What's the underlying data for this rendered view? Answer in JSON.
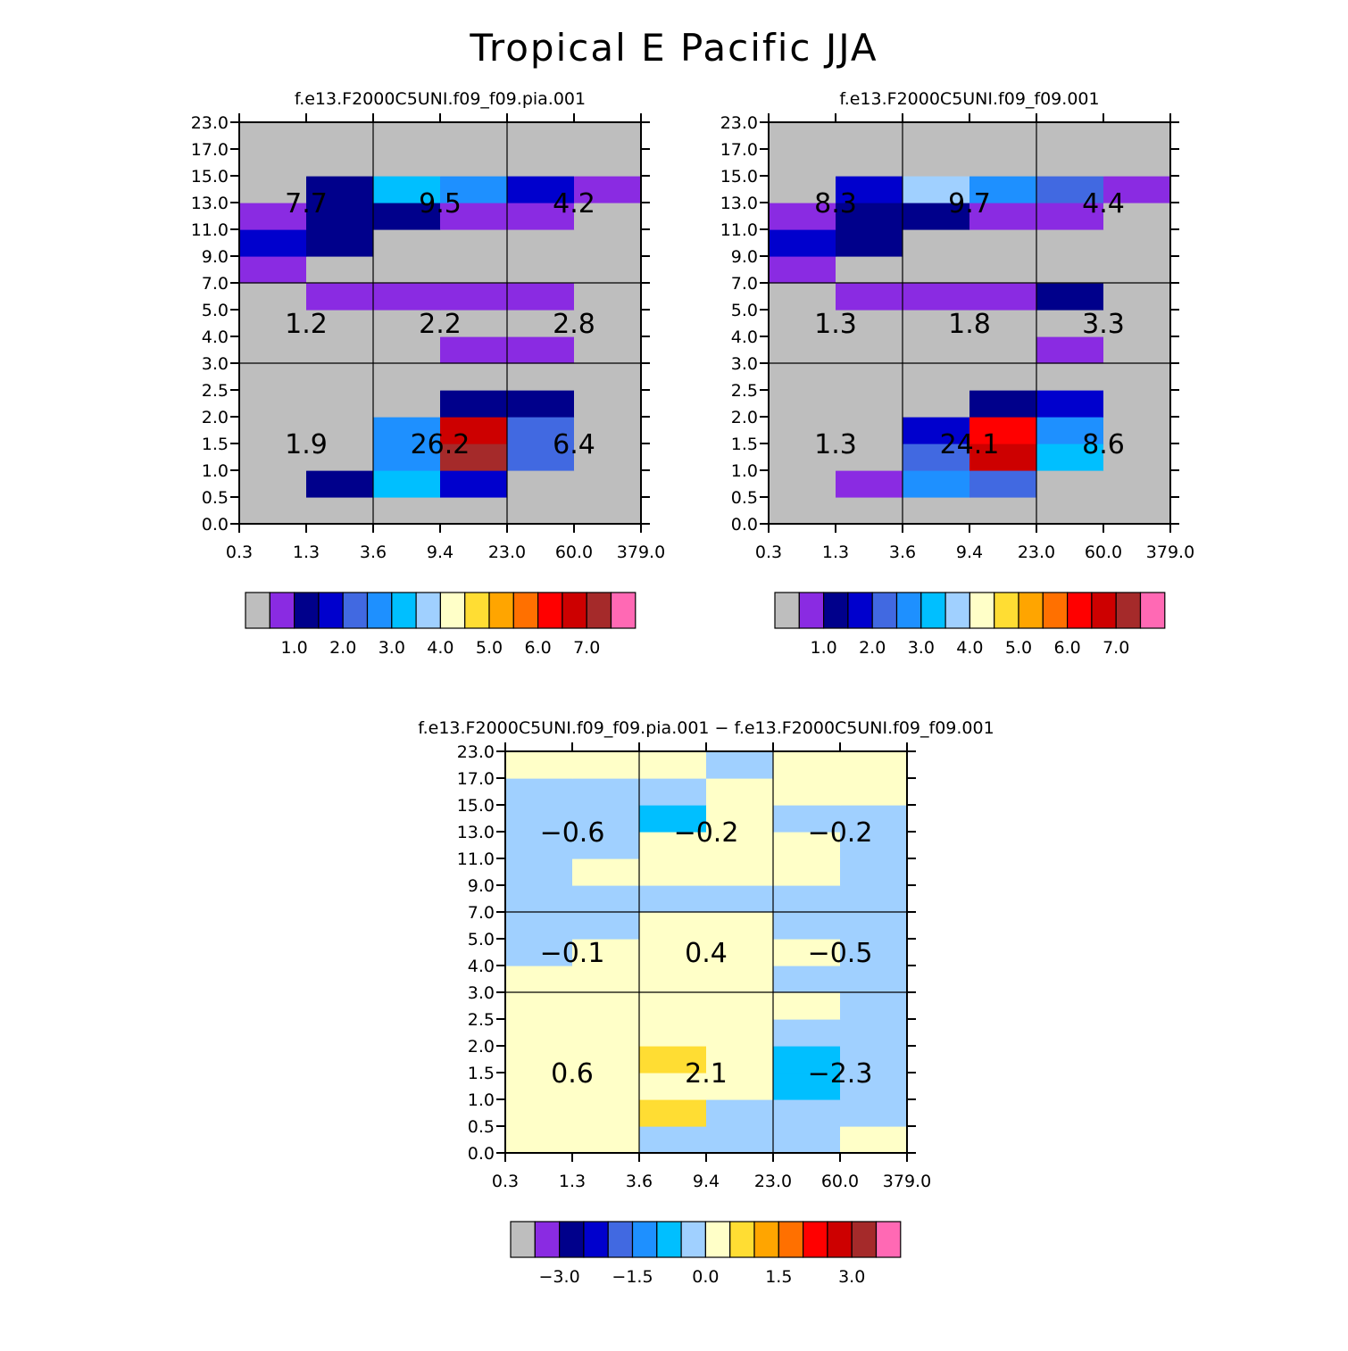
{
  "title": "Tropical E Pacific JJA",
  "x_tick_labels": [
    "0.3",
    "1.3",
    "3.6",
    "9.4",
    "23.0",
    "60.0",
    "379.0"
  ],
  "y_tick_labels": [
    "0.0",
    "0.5",
    "1.0",
    "1.5",
    "2.0",
    "2.5",
    "3.0",
    "4.0",
    "5.0",
    "7.0",
    "9.0",
    "11.0",
    "13.0",
    "15.0",
    "17.0",
    "23.0"
  ],
  "colors": {
    "c0": "#bebebe",
    "c1": "#8a2be2",
    "c2": "#00008b",
    "c3": "#0000cd",
    "c4": "#4169e1",
    "c5": "#1e90ff",
    "c6": "#00bfff",
    "c7": "#a0d0ff",
    "c8": "#ffffc8",
    "c9": "#ffdd33",
    "c10": "#ffa500",
    "c11": "#ff7000",
    "c12": "#ff0000",
    "c13": "#cd0000",
    "c14": "#a52a2a",
    "c15": "#ff69b4"
  },
  "colorbar_abs": {
    "colors": [
      "c0",
      "c1",
      "c2",
      "c3",
      "c4",
      "c5",
      "c6",
      "c7",
      "c8",
      "c9",
      "c10",
      "c11",
      "c12",
      "c13",
      "c14",
      "c15"
    ],
    "labels": [
      {
        "after_box": 2,
        "text": "1.0"
      },
      {
        "after_box": 4,
        "text": "2.0"
      },
      {
        "after_box": 6,
        "text": "3.0"
      },
      {
        "after_box": 8,
        "text": "4.0"
      },
      {
        "after_box": 10,
        "text": "5.0"
      },
      {
        "after_box": 12,
        "text": "6.0"
      },
      {
        "after_box": 14,
        "text": "7.0"
      }
    ]
  },
  "colorbar_diff": {
    "colors": [
      "c0",
      "c1",
      "c2",
      "c3",
      "c4",
      "c5",
      "c6",
      "c7",
      "c8",
      "c9",
      "c10",
      "c11",
      "c12",
      "c13",
      "c14",
      "c15"
    ],
    "labels": [
      {
        "after_box": 2,
        "text": "−3.0"
      },
      {
        "after_box": 5,
        "text": "−1.5"
      },
      {
        "after_box": 8,
        "text": "0.0"
      },
      {
        "after_box": 11,
        "text": "1.5"
      },
      {
        "after_box": 14,
        "text": "3.0"
      }
    ]
  },
  "chart_data": [
    {
      "type": "heatmap",
      "title": "f.e13.F2000C5UNI.f09_f09.pia.001",
      "x_bins": [
        "0.3",
        "1.3",
        "3.6",
        "9.4",
        "23.0",
        "60.0",
        "379.0"
      ],
      "y_bins": [
        "0.0",
        "0.5",
        "1.0",
        "1.5",
        "2.0",
        "2.5",
        "3.0",
        "4.0",
        "5.0",
        "7.0",
        "9.0",
        "11.0",
        "13.0",
        "15.0",
        "17.0",
        "23.0"
      ],
      "cells": [
        [
          "c0",
          "c0",
          "c0",
          "c0",
          "c0",
          "c0"
        ],
        [
          "c0",
          "c2",
          "c6",
          "c3",
          "c0",
          "c0"
        ],
        [
          "c0",
          "c0",
          "c5",
          "c14",
          "c4",
          "c0"
        ],
        [
          "c0",
          "c0",
          "c5",
          "c13",
          "c4",
          "c0"
        ],
        [
          "c0",
          "c0",
          "c0",
          "c2",
          "c2",
          "c0"
        ],
        [
          "c0",
          "c0",
          "c0",
          "c0",
          "c0",
          "c0"
        ],
        [
          "c0",
          "c0",
          "c0",
          "c1",
          "c1",
          "c0"
        ],
        [
          "c0",
          "c0",
          "c0",
          "c0",
          "c0",
          "c0"
        ],
        [
          "c0",
          "c1",
          "c1",
          "c1",
          "c1",
          "c0"
        ],
        [
          "c1",
          "c0",
          "c0",
          "c0",
          "c0",
          "c0"
        ],
        [
          "c3",
          "c2",
          "c0",
          "c0",
          "c0",
          "c0"
        ],
        [
          "c1",
          "c2",
          "c2",
          "c1",
          "c1",
          "c0"
        ],
        [
          "c0",
          "c2",
          "c6",
          "c5",
          "c3",
          "c1"
        ],
        [
          "c0",
          "c0",
          "c0",
          "c0",
          "c0",
          "c0"
        ],
        [
          "c0",
          "c0",
          "c0",
          "c0",
          "c0",
          "c0"
        ]
      ],
      "region_values": [
        {
          "xcol": 0,
          "yrow": 0,
          "text": "1.9"
        },
        {
          "xcol": 1,
          "yrow": 0,
          "text": "26.2"
        },
        {
          "xcol": 2,
          "yrow": 0,
          "text": "6.4"
        },
        {
          "xcol": 0,
          "yrow": 1,
          "text": "1.2"
        },
        {
          "xcol": 1,
          "yrow": 1,
          "text": "2.2"
        },
        {
          "xcol": 2,
          "yrow": 1,
          "text": "2.8"
        },
        {
          "xcol": 0,
          "yrow": 2,
          "text": "7.7"
        },
        {
          "xcol": 1,
          "yrow": 2,
          "text": "9.5"
        },
        {
          "xcol": 2,
          "yrow": 2,
          "text": "4.2"
        }
      ]
    },
    {
      "type": "heatmap",
      "title": "f.e13.F2000C5UNI.f09_f09.001",
      "x_bins": [
        "0.3",
        "1.3",
        "3.6",
        "9.4",
        "23.0",
        "60.0",
        "379.0"
      ],
      "y_bins": [
        "0.0",
        "0.5",
        "1.0",
        "1.5",
        "2.0",
        "2.5",
        "3.0",
        "4.0",
        "5.0",
        "7.0",
        "9.0",
        "11.0",
        "13.0",
        "15.0",
        "17.0",
        "23.0"
      ],
      "cells": [
        [
          "c0",
          "c0",
          "c0",
          "c0",
          "c0",
          "c0"
        ],
        [
          "c0",
          "c1",
          "c5",
          "c4",
          "c0",
          "c0"
        ],
        [
          "c0",
          "c0",
          "c4",
          "c13",
          "c6",
          "c0"
        ],
        [
          "c0",
          "c0",
          "c3",
          "c12",
          "c5",
          "c0"
        ],
        [
          "c0",
          "c0",
          "c0",
          "c2",
          "c3",
          "c0"
        ],
        [
          "c0",
          "c0",
          "c0",
          "c0",
          "c0",
          "c0"
        ],
        [
          "c0",
          "c0",
          "c0",
          "c0",
          "c1",
          "c0"
        ],
        [
          "c0",
          "c0",
          "c0",
          "c0",
          "c0",
          "c0"
        ],
        [
          "c0",
          "c1",
          "c1",
          "c1",
          "c2",
          "c0"
        ],
        [
          "c1",
          "c0",
          "c0",
          "c0",
          "c0",
          "c0"
        ],
        [
          "c3",
          "c2",
          "c0",
          "c0",
          "c0",
          "c0"
        ],
        [
          "c1",
          "c2",
          "c2",
          "c1",
          "c1",
          "c0"
        ],
        [
          "c0",
          "c3",
          "c7",
          "c5",
          "c4",
          "c1"
        ],
        [
          "c0",
          "c0",
          "c0",
          "c0",
          "c0",
          "c0"
        ],
        [
          "c0",
          "c0",
          "c0",
          "c0",
          "c0",
          "c0"
        ]
      ],
      "region_values": [
        {
          "xcol": 0,
          "yrow": 0,
          "text": "1.3"
        },
        {
          "xcol": 1,
          "yrow": 0,
          "text": "24.1"
        },
        {
          "xcol": 2,
          "yrow": 0,
          "text": "8.6"
        },
        {
          "xcol": 0,
          "yrow": 1,
          "text": "1.3"
        },
        {
          "xcol": 1,
          "yrow": 1,
          "text": "1.8"
        },
        {
          "xcol": 2,
          "yrow": 1,
          "text": "3.3"
        },
        {
          "xcol": 0,
          "yrow": 2,
          "text": "8.3"
        },
        {
          "xcol": 1,
          "yrow": 2,
          "text": "9.7"
        },
        {
          "xcol": 2,
          "yrow": 2,
          "text": "4.4"
        }
      ]
    },
    {
      "type": "heatmap",
      "title": "f.e13.F2000C5UNI.f09_f09.pia.001 − f.e13.F2000C5UNI.f09_f09.001",
      "x_bins": [
        "0.3",
        "1.3",
        "3.6",
        "9.4",
        "23.0",
        "60.0",
        "379.0"
      ],
      "y_bins": [
        "0.0",
        "0.5",
        "1.0",
        "1.5",
        "2.0",
        "2.5",
        "3.0",
        "4.0",
        "5.0",
        "7.0",
        "9.0",
        "11.0",
        "13.0",
        "15.0",
        "17.0",
        "23.0"
      ],
      "cells": [
        [
          "c8",
          "c8",
          "c7",
          "c7",
          "c7",
          "c8"
        ],
        [
          "c8",
          "c8",
          "c9",
          "c7",
          "c7",
          "c7"
        ],
        [
          "c8",
          "c8",
          "c8",
          "c8",
          "c6",
          "c7"
        ],
        [
          "c8",
          "c8",
          "c9",
          "c8",
          "c6",
          "c7"
        ],
        [
          "c8",
          "c8",
          "c8",
          "c8",
          "c7",
          "c7"
        ],
        [
          "c8",
          "c8",
          "c8",
          "c8",
          "c8",
          "c7"
        ],
        [
          "c8",
          "c8",
          "c8",
          "c8",
          "c7",
          "c7"
        ],
        [
          "c7",
          "c8",
          "c8",
          "c8",
          "c8",
          "c7"
        ],
        [
          "c7",
          "c7",
          "c8",
          "c8",
          "c7",
          "c7"
        ],
        [
          "c7",
          "c7",
          "c7",
          "c7",
          "c7",
          "c7"
        ],
        [
          "c7",
          "c8",
          "c8",
          "c8",
          "c8",
          "c7"
        ],
        [
          "c7",
          "c7",
          "c8",
          "c8",
          "c8",
          "c7"
        ],
        [
          "c7",
          "c7",
          "c6",
          "c8",
          "c7",
          "c7"
        ],
        [
          "c7",
          "c7",
          "c7",
          "c8",
          "c8",
          "c8"
        ],
        [
          "c8",
          "c8",
          "c8",
          "c7",
          "c8",
          "c8"
        ]
      ],
      "region_values": [
        {
          "xcol": 0,
          "yrow": 0,
          "text": "0.6"
        },
        {
          "xcol": 1,
          "yrow": 0,
          "text": "2.1"
        },
        {
          "xcol": 2,
          "yrow": 0,
          "text": "−2.3"
        },
        {
          "xcol": 0,
          "yrow": 1,
          "text": "−0.1"
        },
        {
          "xcol": 1,
          "yrow": 1,
          "text": "0.4"
        },
        {
          "xcol": 2,
          "yrow": 1,
          "text": "−0.5"
        },
        {
          "xcol": 0,
          "yrow": 2,
          "text": "−0.6"
        },
        {
          "xcol": 1,
          "yrow": 2,
          "text": "−0.2"
        },
        {
          "xcol": 2,
          "yrow": 2,
          "text": "−0.2"
        }
      ]
    }
  ]
}
